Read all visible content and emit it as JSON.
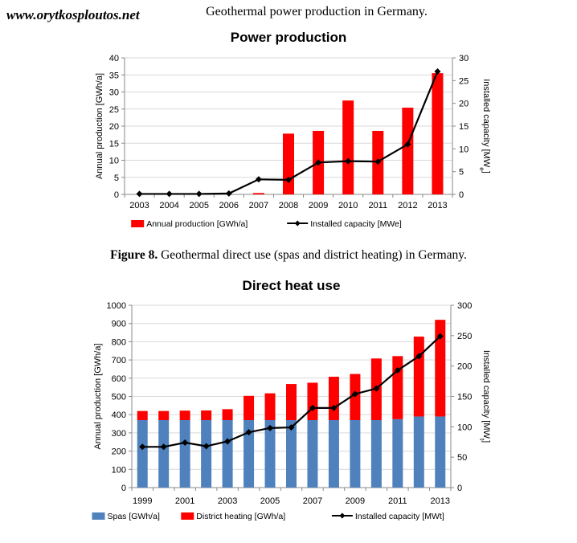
{
  "watermark": "www.orytkosploutos.net",
  "caption_top": "Geothermal power production in Germany.",
  "caption_fig8": {
    "label": "Figure 8.",
    "text": " Geothermal direct use (spas and district heating) in Germany."
  },
  "chart_data": [
    {
      "type": "bar",
      "title": "Power production",
      "categories": [
        "2003",
        "2004",
        "2005",
        "2006",
        "2007",
        "2008",
        "2009",
        "2010",
        "2011",
        "2012",
        "2013"
      ],
      "ylabel": "Annual production [GWh/a]",
      "ylabel2": "Installed capacity [MWe]",
      "ylim": [
        0,
        40
      ],
      "yticks": [
        0,
        5,
        10,
        15,
        20,
        25,
        30,
        35,
        40
      ],
      "ylim2": [
        0,
        30
      ],
      "yticks2": [
        0,
        5,
        10,
        15,
        20,
        25,
        30
      ],
      "series": [
        {
          "name": "Annual production [GWh/a]",
          "type": "bar",
          "color": "#ff0000",
          "axis": "left",
          "values": [
            0,
            0,
            0,
            0,
            0.4,
            17.8,
            18.6,
            27.5,
            18.6,
            25.4,
            35.5
          ]
        },
        {
          "name": "Installed capacity [MWe]",
          "type": "line",
          "color": "#000000",
          "marker": "diamond",
          "axis": "right",
          "values": [
            0.1,
            0.1,
            0.1,
            0.2,
            3.3,
            3.2,
            7.0,
            7.3,
            7.2,
            11.0,
            27.0
          ]
        }
      ],
      "legend": "bottom",
      "grid": true
    },
    {
      "type": "bar",
      "title": "Direct heat use",
      "categories": [
        "1999",
        "2000",
        "2001",
        "2002",
        "2003",
        "2004",
        "2005",
        "2006",
        "2007",
        "2008",
        "2009",
        "2010",
        "2011",
        "2012",
        "2013"
      ],
      "xticklabels": [
        "1999",
        "",
        "2001",
        "",
        "2003",
        "",
        "2005",
        "",
        "2007",
        "",
        "2009",
        "",
        "2011",
        "",
        "2013"
      ],
      "ylabel": "Annual production [GWh/a]",
      "ylabel2": "Installed capacity [MWt]",
      "ylim": [
        0,
        1000
      ],
      "yticks": [
        0,
        100,
        200,
        300,
        400,
        500,
        600,
        700,
        800,
        900,
        1000
      ],
      "ylim2": [
        0,
        300
      ],
      "yticks2": [
        0,
        50,
        100,
        150,
        200,
        250,
        300
      ],
      "stacked": true,
      "series": [
        {
          "name": "Spas [GWh/a]",
          "type": "bar",
          "color": "#4f81bd",
          "axis": "left",
          "values": [
            370,
            370,
            370,
            370,
            370,
            370,
            370,
            370,
            370,
            370,
            370,
            370,
            375,
            390,
            390
          ]
        },
        {
          "name": "District heating [GWh/a]",
          "type": "bar",
          "color": "#ff0000",
          "axis": "left",
          "values": [
            50,
            50,
            52,
            53,
            60,
            133,
            147,
            198,
            205,
            238,
            253,
            338,
            346,
            438,
            530
          ]
        },
        {
          "name": "Installed capacity [MWt]",
          "type": "line",
          "color": "#000000",
          "marker": "diamond",
          "axis": "right",
          "values": [
            67,
            67,
            74,
            68,
            76,
            91,
            98,
            99,
            131,
            131,
            154,
            163,
            193,
            216,
            249
          ]
        }
      ],
      "legend": "bottom",
      "grid": true
    }
  ]
}
